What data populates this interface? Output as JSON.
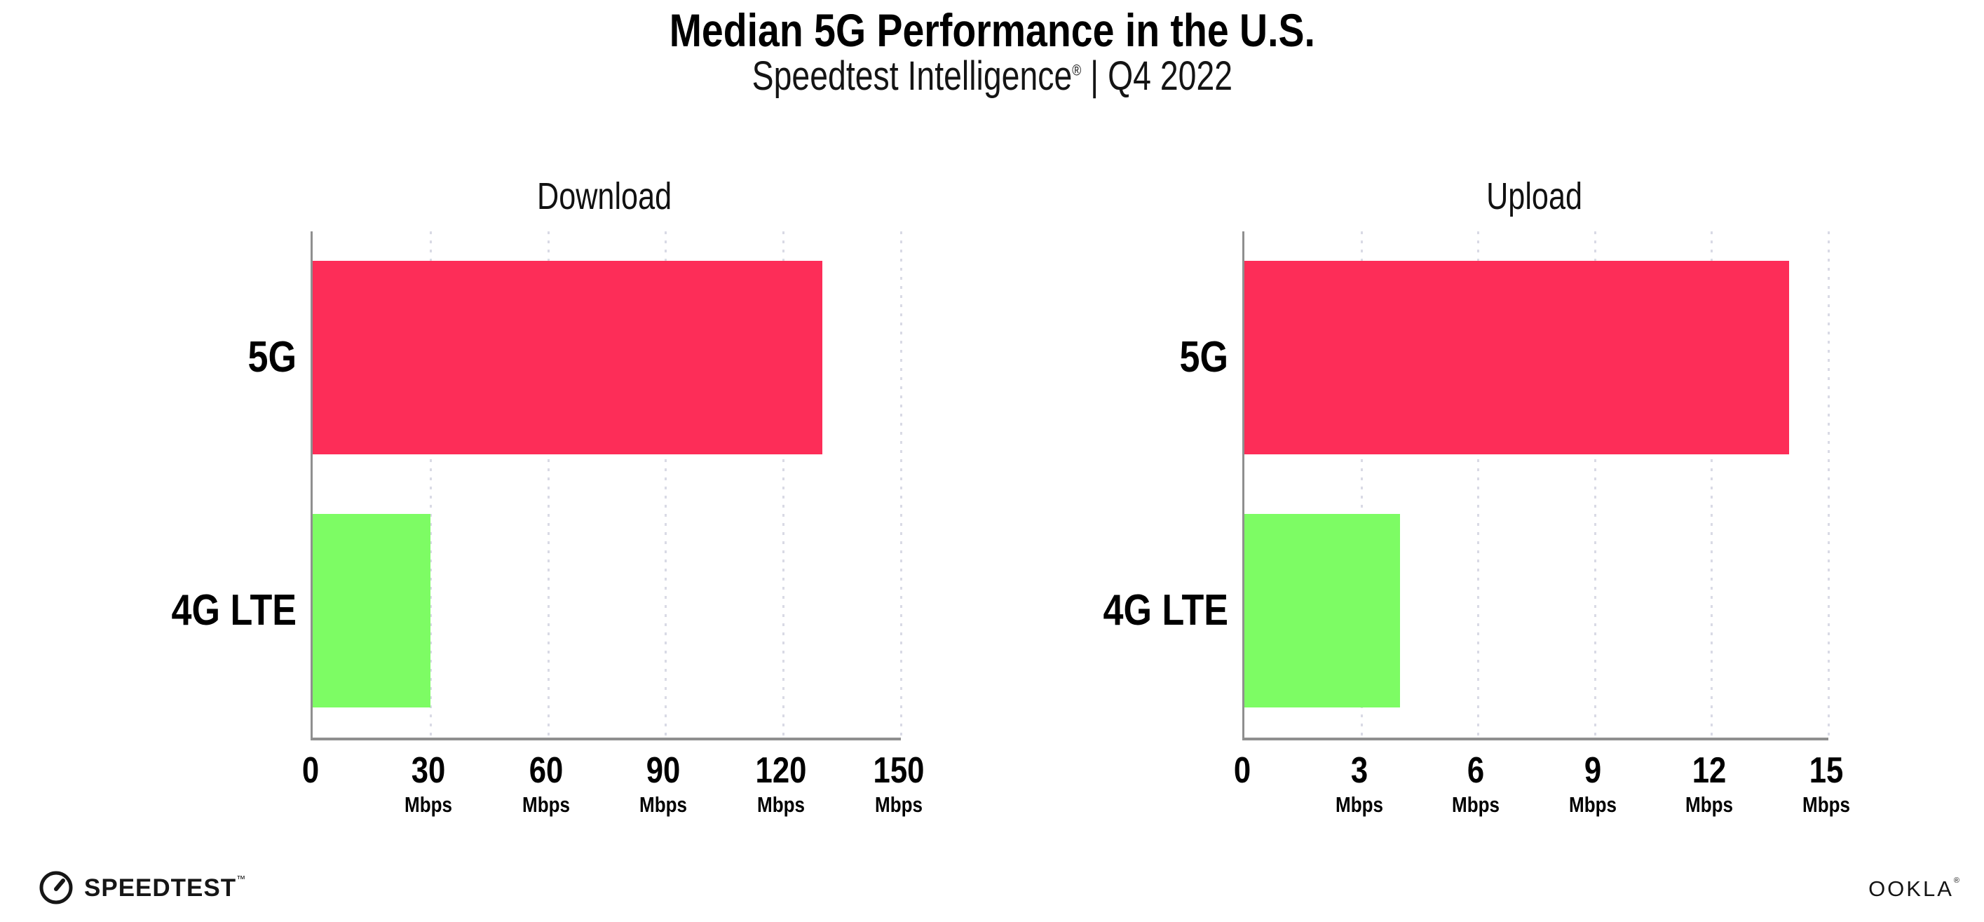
{
  "header": {
    "title": "Median 5G Performance in the U.S.",
    "subtitle_brand": "Speedtest Intelligence",
    "subtitle_reg": "®",
    "subtitle_sep": " | ",
    "subtitle_period": "Q4 2022"
  },
  "chart_data": [
    {
      "type": "bar",
      "orientation": "horizontal",
      "title": "Download",
      "categories": [
        "5G",
        "4G LTE"
      ],
      "values": [
        130,
        30
      ],
      "unit": "Mbps",
      "xlim": [
        0,
        150
      ],
      "xticks": [
        0,
        30,
        60,
        90,
        120,
        150
      ],
      "bar_colors": [
        "#fd2d58",
        "#7dfc64"
      ],
      "grid": "dotted-vertical-gridlines",
      "legend": "none"
    },
    {
      "type": "bar",
      "orientation": "horizontal",
      "title": "Upload",
      "categories": [
        "5G",
        "4G LTE"
      ],
      "values": [
        14,
        4
      ],
      "unit": "Mbps",
      "xlim": [
        0,
        15
      ],
      "xticks": [
        0,
        3,
        6,
        9,
        12,
        15
      ],
      "bar_colors": [
        "#fd2d58",
        "#7dfc64"
      ],
      "grid": "dotted-vertical-gridlines",
      "legend": "none"
    }
  ],
  "footer": {
    "speedtest_label": "SPEEDTEST",
    "speedtest_tm": "™",
    "speedtest_icon": "gauge-icon",
    "ookla_label": "OOKLA",
    "ookla_reg": "®"
  },
  "colors": {
    "bar_5g": "#fd2d58",
    "bar_4g_lte": "#7dfc64",
    "axis": "#8f8f8f",
    "gridline": "#d9dae5",
    "text": "#000000"
  }
}
